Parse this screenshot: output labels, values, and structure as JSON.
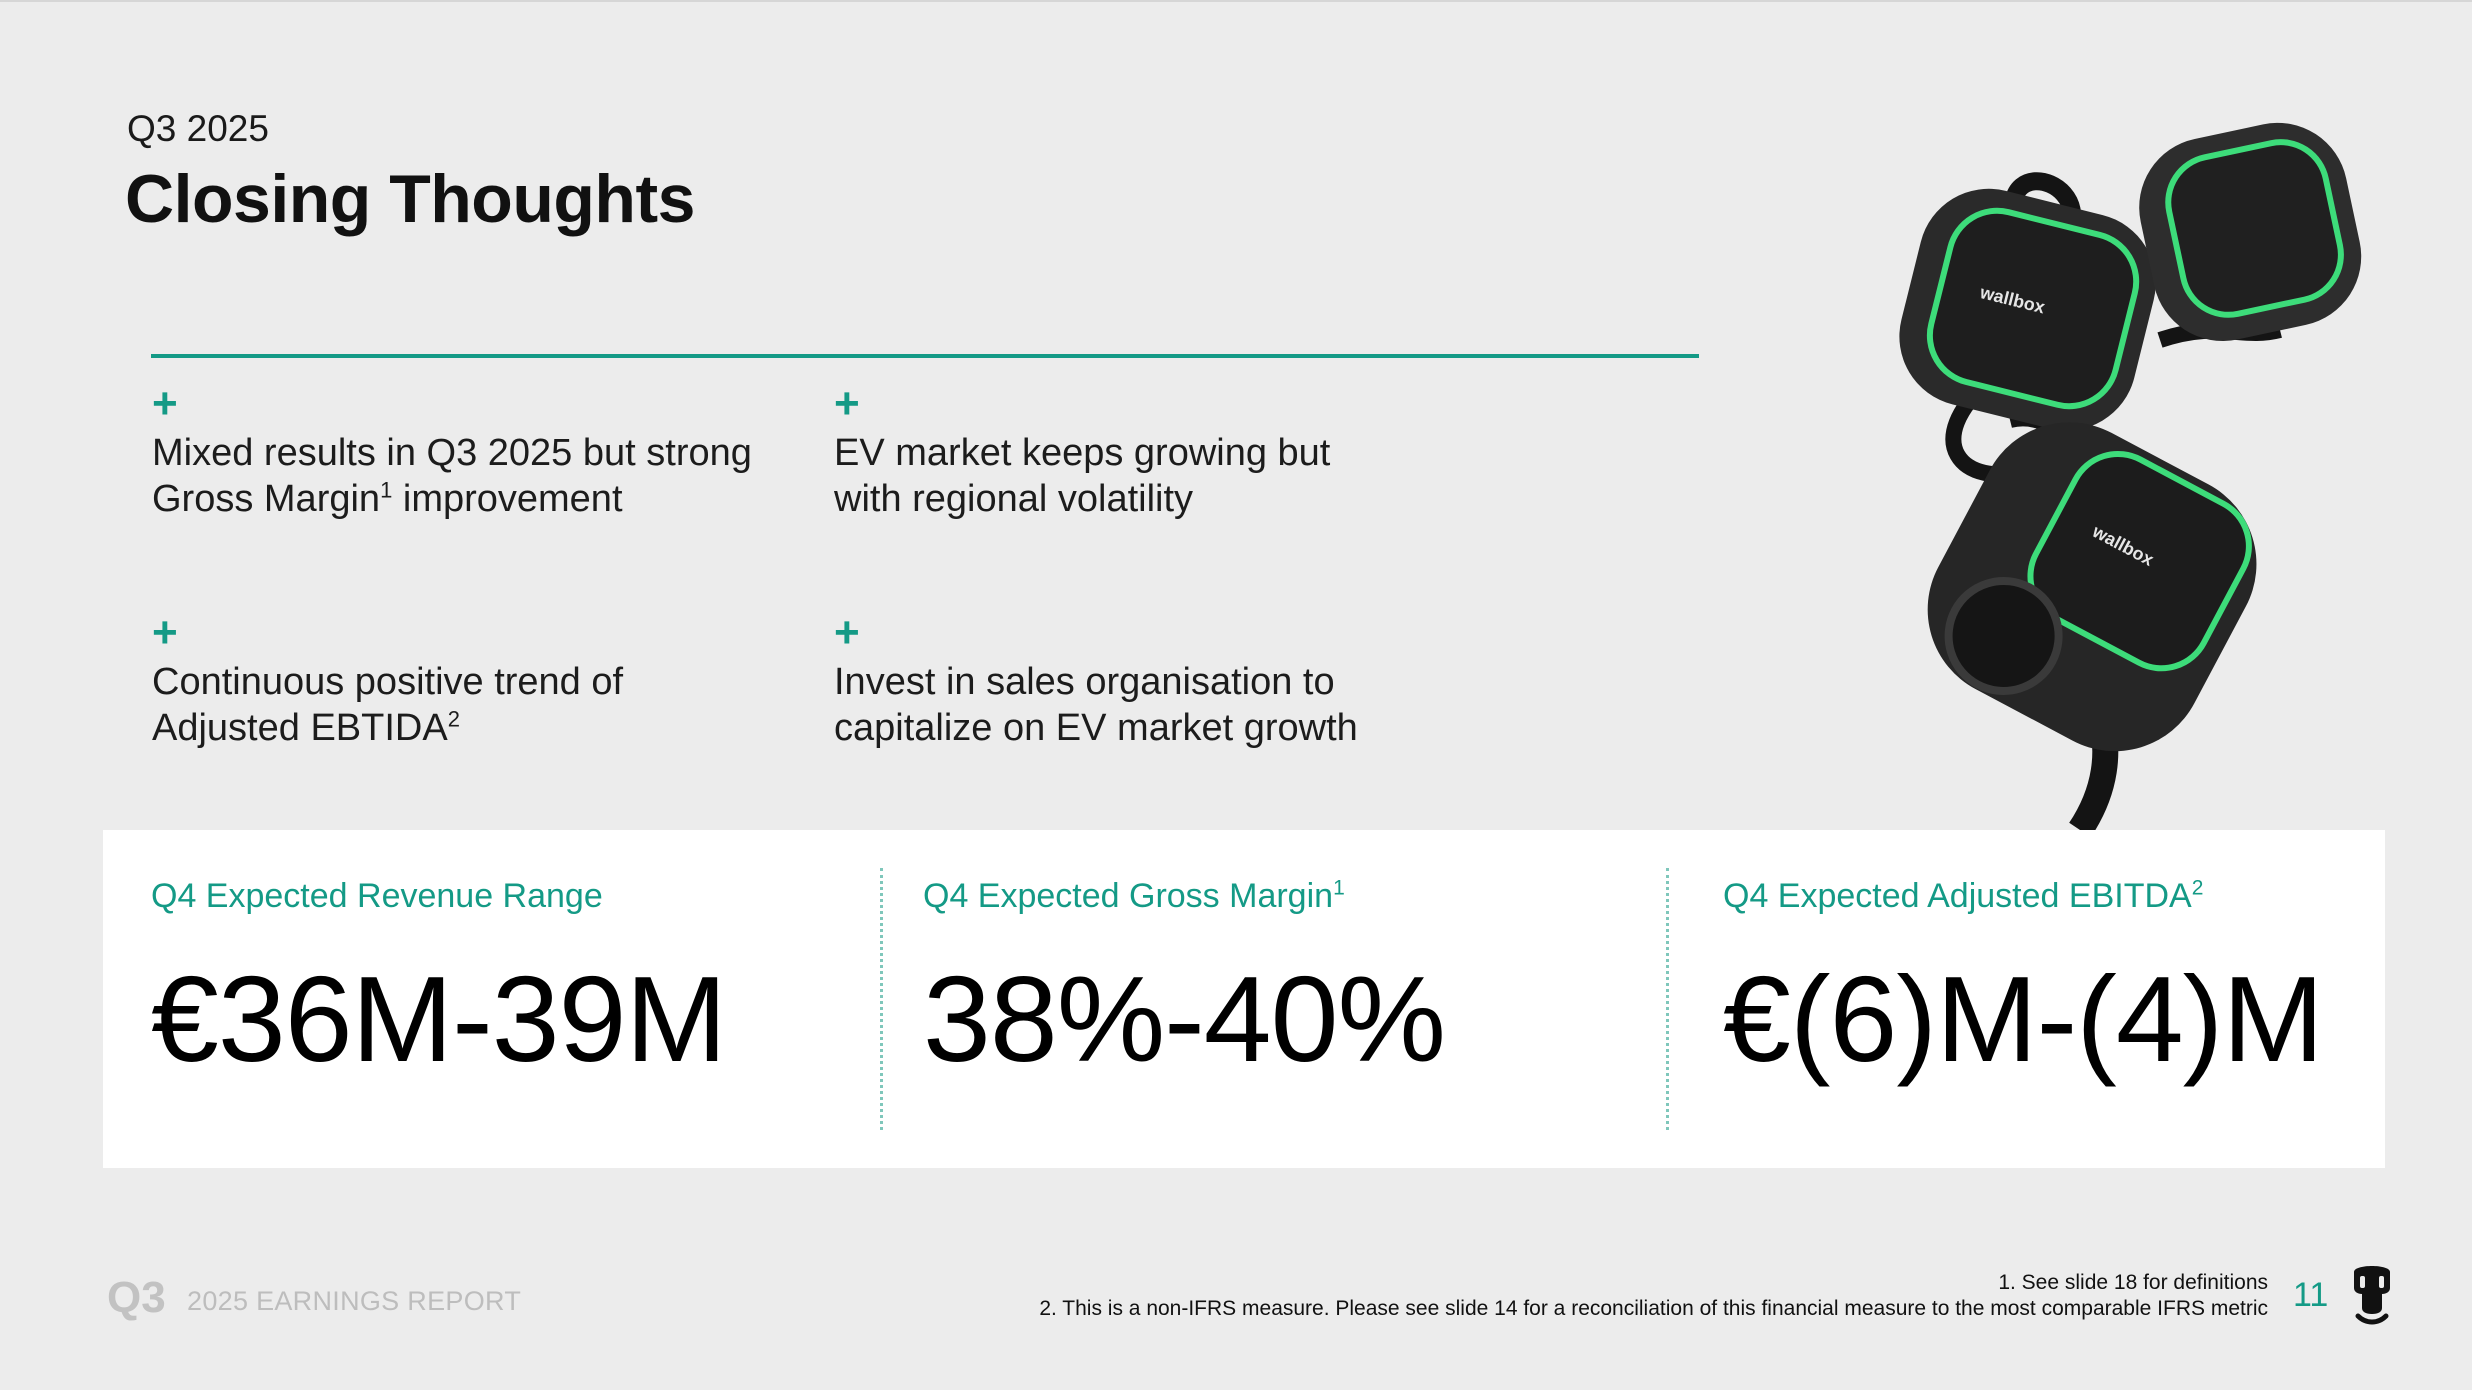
{
  "header": {
    "eyebrow": "Q3 2025",
    "title": "Closing Thoughts"
  },
  "points": [
    {
      "symbol": "+",
      "line1": "Mixed results in Q3 2025 but strong",
      "line2_pre": "Gross Margin",
      "line2_sup": "1",
      "line2_post": " improvement"
    },
    {
      "symbol": "+",
      "line1": "EV market keeps growing but",
      "line2_pre": "with regional volatility",
      "line2_sup": "",
      "line2_post": ""
    },
    {
      "symbol": "+",
      "line1": "Continuous positive trend of",
      "line2_pre": "Adjusted EBTIDA",
      "line2_sup": "2",
      "line2_post": ""
    },
    {
      "symbol": "+",
      "line1": "Invest in sales organisation to",
      "line2_pre": "capitalize on EV market growth",
      "line2_sup": "",
      "line2_post": ""
    }
  ],
  "metrics": [
    {
      "label": "Q4 Expected Revenue Range",
      "sup": "",
      "value": "€36M-39M"
    },
    {
      "label": "Q4 Expected Gross Margin",
      "sup": "1",
      "value": "38%-40%"
    },
    {
      "label": "Q4 Expected Adjusted EBITDA",
      "sup": "2",
      "value": "€(6)M-(4)M"
    }
  ],
  "product_image": {
    "brand_text": "wallbox",
    "icon": "wallbox-chargers-image"
  },
  "footer": {
    "q3": "Q3",
    "report": "2025 EARNINGS REPORT",
    "note1": "1. See slide 18 for definitions",
    "note2": "2. This is a non-IFRS measure. Please see slide 14 for a reconciliation of this financial measure to the most comparable IFRS metric",
    "page": "11",
    "logo_icon": "wallbox-logo-icon"
  },
  "colors": {
    "accent": "#149a86",
    "background": "#ececec",
    "panel": "#ffffff",
    "charger_ring": "#3ddc7a"
  }
}
